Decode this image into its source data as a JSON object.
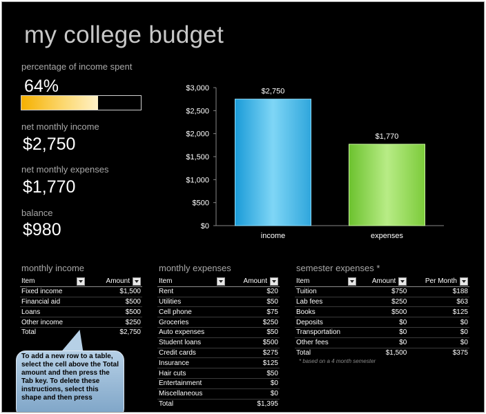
{
  "title": "my college budget",
  "summary": {
    "percent_label": "percentage of income spent",
    "percent_value": "64%",
    "percent_fraction": 0.64,
    "income_label": "net monthly income",
    "income_value": "$2,750",
    "expenses_label": "net monthly expenses",
    "expenses_value": "$1,770",
    "balance_label": "balance",
    "balance_value": "$980"
  },
  "chart_data": {
    "type": "bar",
    "categories": [
      "income",
      "expenses"
    ],
    "values": [
      2750,
      1770
    ],
    "data_labels": [
      "$2,750",
      "$1,770"
    ],
    "ylim": [
      0,
      3000
    ],
    "yticks": [
      "$0",
      "$500",
      "$1,000",
      "$1,500",
      "$2,000",
      "$2,500",
      "$3,000"
    ],
    "colors": [
      "#3fb5e8",
      "#8fd44a"
    ],
    "title": "",
    "xlabel": "",
    "ylabel": ""
  },
  "monthly_income": {
    "title": "monthly income",
    "headers": [
      "Item",
      "Amount"
    ],
    "rows": [
      [
        "Fixed income",
        "$1,500"
      ],
      [
        "Financial aid",
        "$500"
      ],
      [
        "Loans",
        "$500"
      ],
      [
        "Other income",
        "$250"
      ]
    ],
    "total": [
      "Total",
      "$2,750"
    ]
  },
  "monthly_expenses": {
    "title": "monthly expenses",
    "headers": [
      "Item",
      "Amount"
    ],
    "rows": [
      [
        "Rent",
        "$20"
      ],
      [
        "Utilities",
        "$50"
      ],
      [
        "Cell phone",
        "$75"
      ],
      [
        "Groceries",
        "$250"
      ],
      [
        "Auto expenses",
        "$50"
      ],
      [
        "Student loans",
        "$500"
      ],
      [
        "Credit cards",
        "$275"
      ],
      [
        "Insurance",
        "$125"
      ],
      [
        "Hair cuts",
        "$50"
      ],
      [
        "Entertainment",
        "$0"
      ],
      [
        "Miscellaneous",
        "$0"
      ]
    ],
    "total": [
      "Total",
      "$1,395"
    ]
  },
  "semester_expenses": {
    "title": "semester expenses *",
    "headers": [
      "Item",
      "Amount",
      "Per Month"
    ],
    "rows": [
      [
        "Tuition",
        "$750",
        "$188"
      ],
      [
        "Lab fees",
        "$250",
        "$63"
      ],
      [
        "Books",
        "$500",
        "$125"
      ],
      [
        "Deposits",
        "$0",
        "$0"
      ],
      [
        "Transportation",
        "$0",
        "$0"
      ],
      [
        "Other fees",
        "$0",
        "$0"
      ]
    ],
    "total": [
      "Total",
      "$1,500",
      "$375"
    ],
    "note": "* based on a 4 month semester"
  },
  "callout": {
    "text": "To add a new row to a table, select the cell above the Total amount and then press the Tab key. To delete these instructions, select this shape and then press"
  }
}
